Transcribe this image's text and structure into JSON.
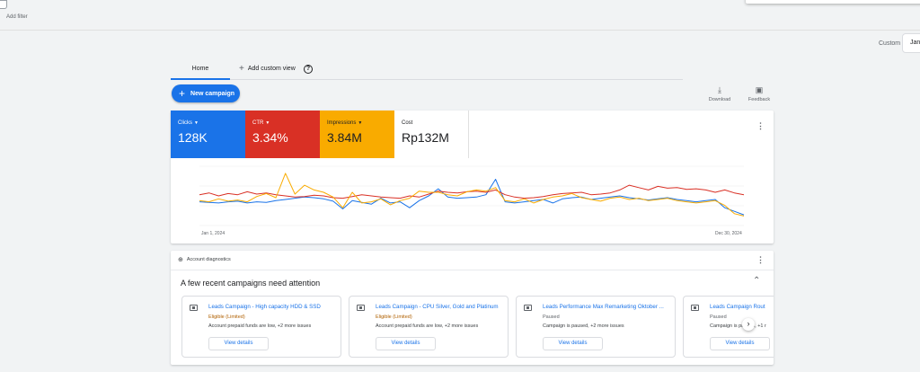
{
  "filter": {
    "add_filter_label": "Add filter"
  },
  "date_range": {
    "custom_label": "Custom",
    "date_value": "Jan"
  },
  "tabs": {
    "home": "Home",
    "add_custom_view": "Add custom view",
    "help_icon": "?"
  },
  "toolbar": {
    "new_campaign_label": "New campaign",
    "download_label": "Download",
    "feedback_label": "Feedback"
  },
  "metrics": [
    {
      "label": "Clicks",
      "value": "128K",
      "color": "#1a73e8"
    },
    {
      "label": "CTR",
      "value": "3.34%",
      "color": "#d93025"
    },
    {
      "label": "Impressions",
      "value": "3.84M",
      "color": "#f9ab00"
    },
    {
      "label": "Cost",
      "value": "Rp132M",
      "color": "#ffffff"
    }
  ],
  "chart_data": {
    "type": "line",
    "x_start_label": "Jan 1, 2024",
    "x_end_label": "Dec 30, 2024",
    "grid": true,
    "series": [
      {
        "name": "Clicks",
        "color": "#1a73e8",
        "values": [
          40,
          39,
          38,
          40,
          41,
          38,
          40,
          39,
          42,
          44,
          46,
          48,
          47,
          45,
          41,
          28,
          42,
          39,
          36,
          46,
          38,
          40,
          30,
          42,
          50,
          62,
          48,
          46,
          47,
          48,
          52,
          78,
          40,
          38,
          40,
          42,
          44,
          38,
          45,
          47,
          48,
          44,
          46,
          48,
          50,
          47,
          45,
          43,
          45,
          47,
          44,
          42,
          40,
          42,
          44,
          30,
          24,
          18
        ]
      },
      {
        "name": "CTR",
        "color": "#d93025",
        "values": [
          52,
          55,
          50,
          54,
          52,
          57,
          53,
          55,
          52,
          50,
          48,
          49,
          51,
          50,
          47,
          46,
          49,
          52,
          50,
          48,
          47,
          46,
          50,
          48,
          53,
          58,
          56,
          55,
          57,
          58,
          56,
          60,
          52,
          48,
          46,
          47,
          49,
          52,
          54,
          55,
          56,
          52,
          53,
          55,
          60,
          68,
          64,
          60,
          66,
          63,
          64,
          61,
          62,
          60,
          56,
          60,
          55,
          52
        ]
      },
      {
        "name": "Impressions",
        "color": "#f9ab00",
        "values": [
          42,
          40,
          45,
          41,
          43,
          40,
          49,
          54,
          47,
          88,
          53,
          68,
          60,
          56,
          48,
          30,
          56,
          38,
          40,
          45,
          35,
          42,
          46,
          58,
          56,
          56,
          52,
          50,
          57,
          60,
          58,
          64,
          42,
          40,
          45,
          38,
          44,
          48,
          50,
          54,
          47,
          44,
          41,
          46,
          48,
          44,
          46,
          42,
          44,
          46,
          42,
          40,
          38,
          40,
          42,
          34,
          20,
          16
        ]
      }
    ]
  },
  "diagnostics": {
    "header_label": "Account diagnostics",
    "attention_title": "A few recent campaigns need attention",
    "campaigns": [
      {
        "name": "Leads Campaign - High capacity HDD & SSD",
        "status": "Eligible (Limited)",
        "desc": "Account prepaid funds are low, +2 more issues",
        "button": "View details"
      },
      {
        "name": "Leads Campaign - CPU Silver, Gold and Platinum",
        "status": "Eligible (Limited)",
        "desc": "Account prepaid funds are low, +2 more issues",
        "button": "View details"
      },
      {
        "name": "Leads Performance Max Remarketing Oktober ...",
        "status": "Paused",
        "desc": "Campaign is paused, +2 more issues",
        "button": "View details"
      },
      {
        "name": "Leads Campaign Rout",
        "status": "Paused",
        "desc": "Campaign is paused, +1 r",
        "button": "View details"
      }
    ]
  }
}
